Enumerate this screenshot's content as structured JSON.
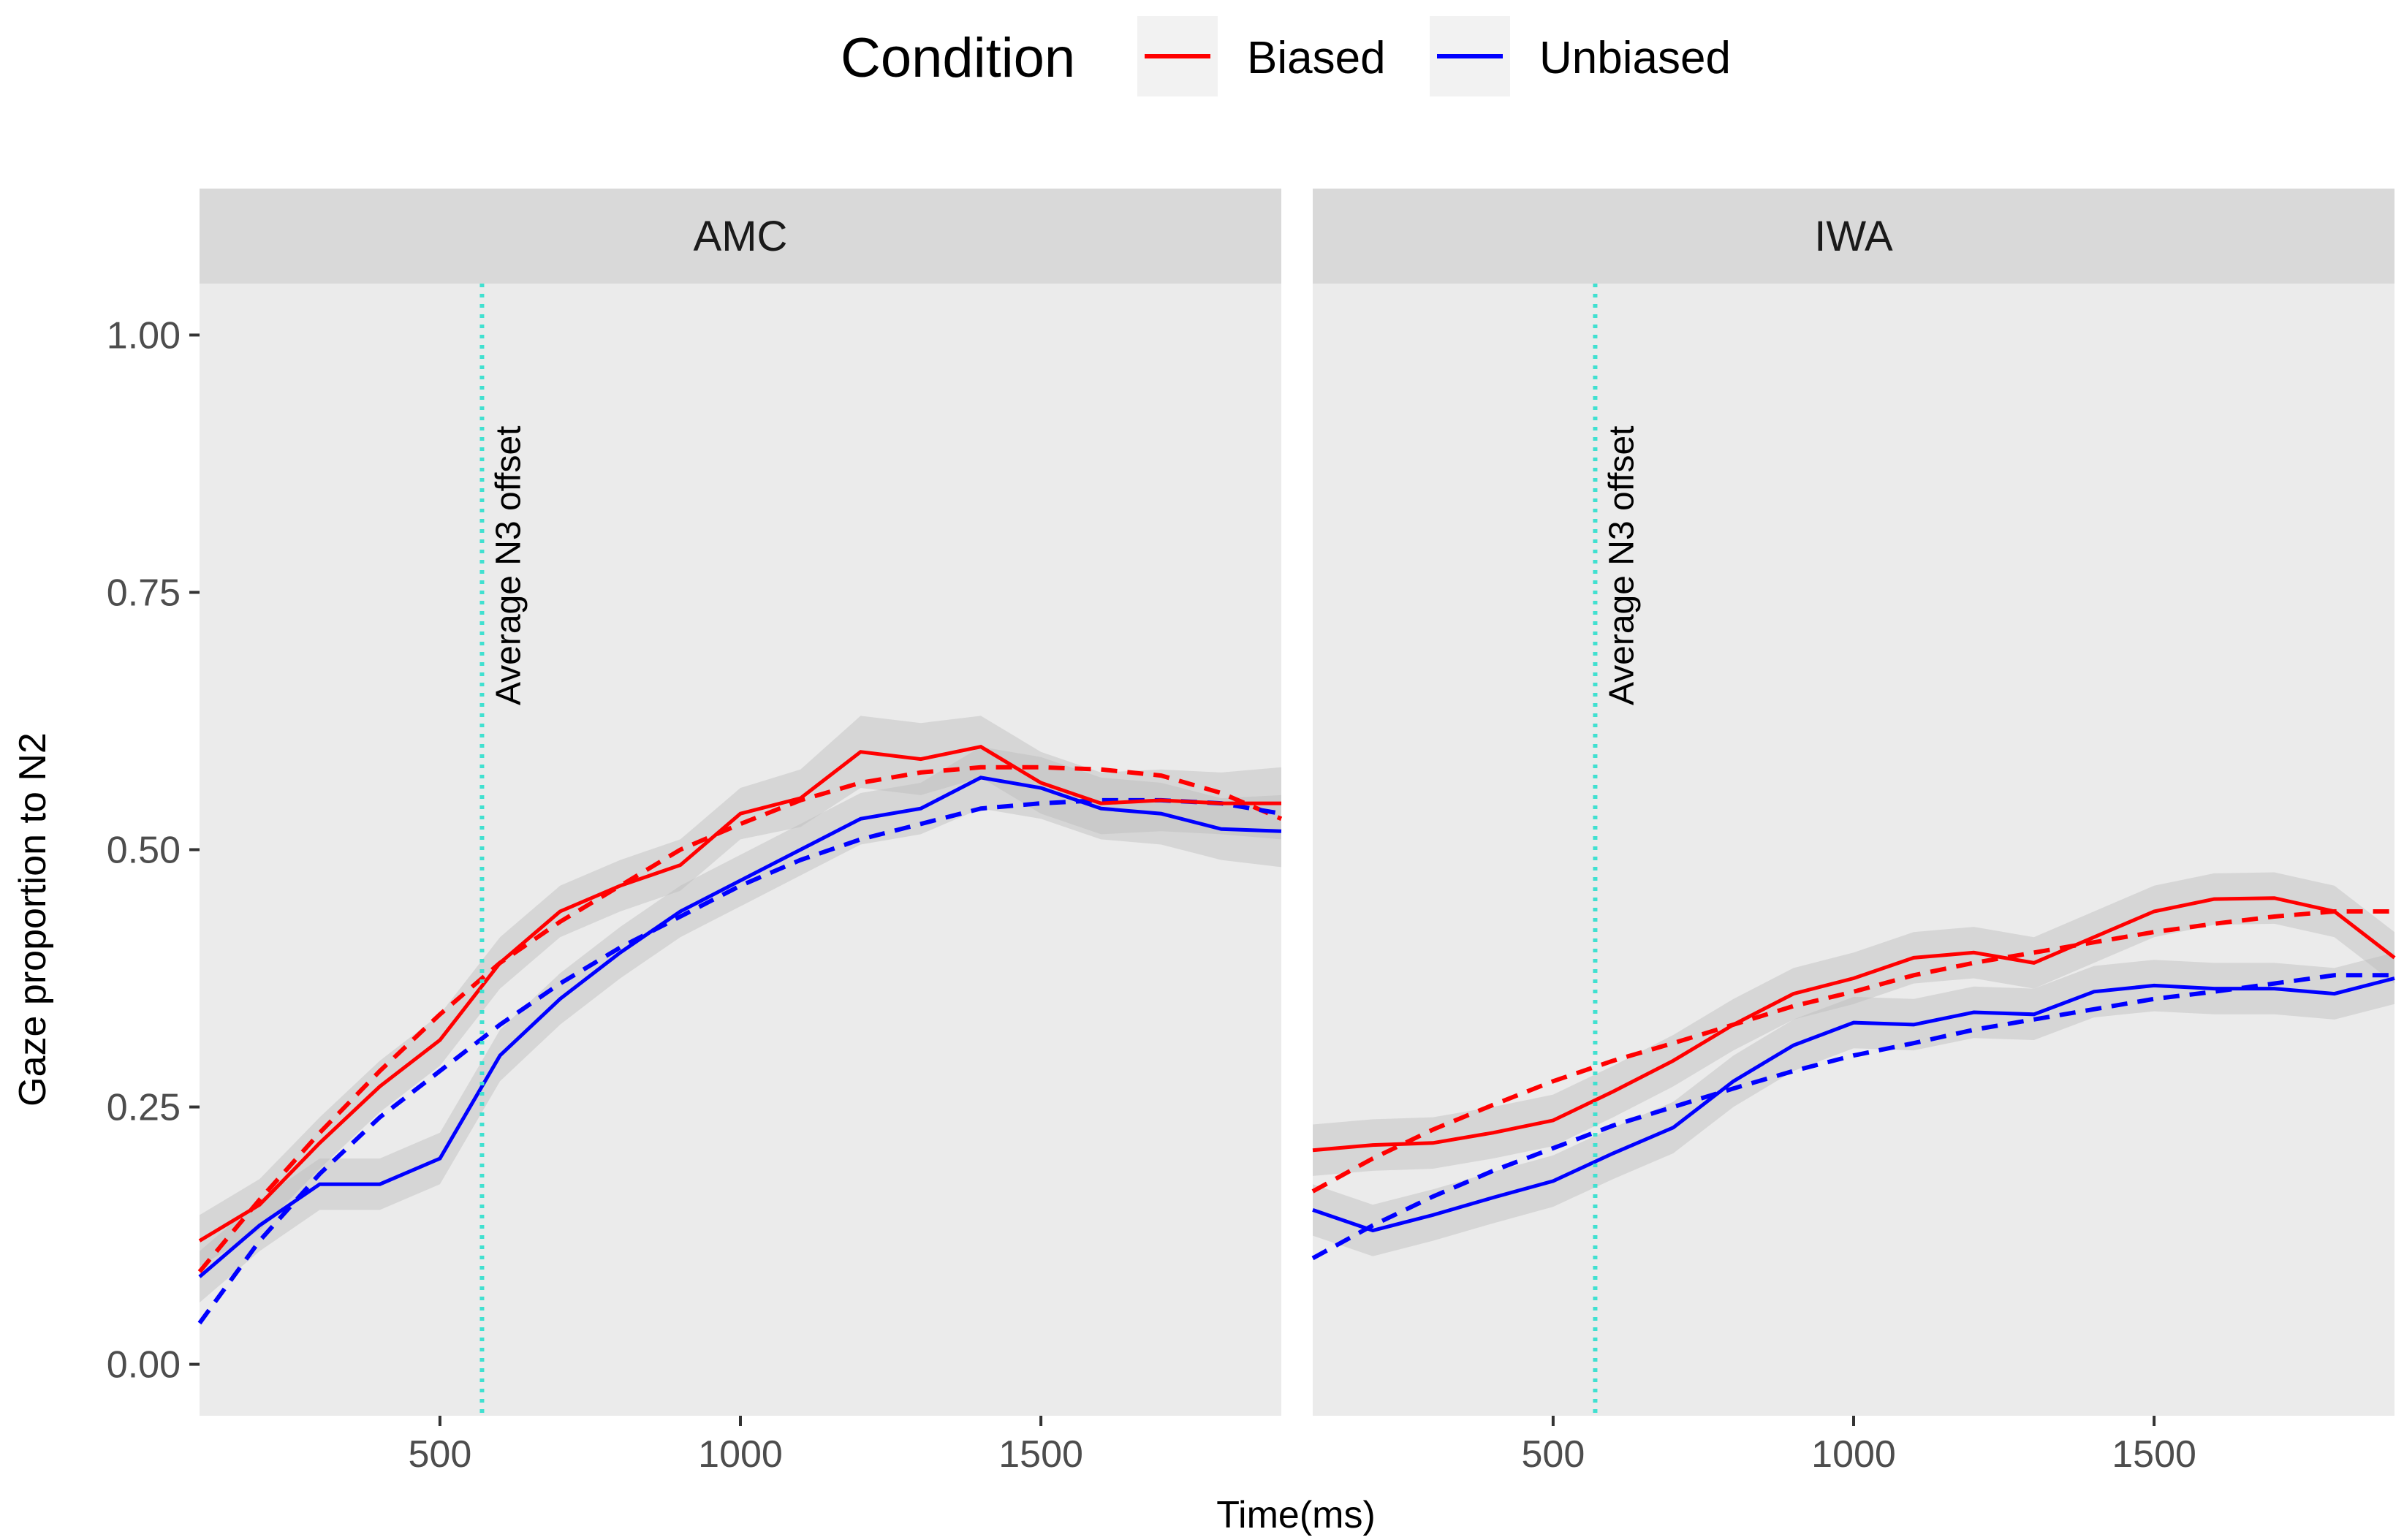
{
  "chart_data": {
    "type": "line",
    "xlabel": "Time(ms)",
    "ylabel": "Gaze proportion to N2",
    "xlim": [
      100,
      1900
    ],
    "ylim": [
      -0.05,
      1.05
    ],
    "x_ticks": [
      500,
      1000,
      1500
    ],
    "y_ticks": [
      0.0,
      0.25,
      0.5,
      0.75,
      1.0
    ],
    "y_tick_labels": [
      "0.00",
      "0.25",
      "0.50",
      "0.75",
      "1.00"
    ],
    "grid": false,
    "legend": {
      "title": "Condition",
      "position": "top",
      "entries": [
        {
          "label": "Biased",
          "color": "#ff0000"
        },
        {
          "label": "Unbiased",
          "color": "#0000ff"
        }
      ]
    },
    "annotation": {
      "label": "Average N3 offset",
      "x": 570,
      "color": "#40e0d0"
    },
    "panels": [
      {
        "title": "AMC",
        "series": [
          {
            "name": "Biased",
            "color": "#ff0000",
            "observed": {
              "x": [
                100,
                200,
                300,
                400,
                500,
                600,
                700,
                800,
                900,
                1000,
                1100,
                1200,
                1300,
                1400,
                1500,
                1600,
                1700,
                1800,
                1900
              ],
              "y": [
                0.12,
                0.155,
                0.215,
                0.27,
                0.315,
                0.39,
                0.44,
                0.465,
                0.485,
                0.535,
                0.55,
                0.595,
                0.588,
                0.6,
                0.565,
                0.545,
                0.548,
                0.545,
                0.545
              ],
              "se": [
                0.025,
                0.025,
                0.025,
                0.025,
                0.025,
                0.025,
                0.025,
                0.025,
                0.025,
                0.025,
                0.028,
                0.035,
                0.035,
                0.03,
                0.03,
                0.03,
                0.03,
                0.03,
                0.035
              ]
            },
            "fitted": {
              "x": [
                100,
                200,
                300,
                400,
                500,
                600,
                700,
                800,
                900,
                1000,
                1100,
                1200,
                1300,
                1400,
                1500,
                1600,
                1700,
                1800,
                1900
              ],
              "y": [
                0.09,
                0.16,
                0.225,
                0.285,
                0.34,
                0.39,
                0.43,
                0.465,
                0.5,
                0.525,
                0.548,
                0.565,
                0.575,
                0.58,
                0.58,
                0.578,
                0.572,
                0.555,
                0.53
              ]
            }
          },
          {
            "name": "Unbiased",
            "color": "#0000ff",
            "observed": {
              "x": [
                100,
                200,
                300,
                400,
                500,
                600,
                700,
                800,
                900,
                1000,
                1100,
                1200,
                1300,
                1400,
                1500,
                1600,
                1700,
                1800,
                1900
              ],
              "y": [
                0.085,
                0.135,
                0.175,
                0.175,
                0.2,
                0.3,
                0.355,
                0.4,
                0.44,
                0.47,
                0.5,
                0.53,
                0.54,
                0.57,
                0.56,
                0.54,
                0.535,
                0.52,
                0.518
              ],
              "se": [
                0.025,
                0.025,
                0.025,
                0.025,
                0.025,
                0.025,
                0.025,
                0.025,
                0.025,
                0.025,
                0.025,
                0.025,
                0.025,
                0.03,
                0.03,
                0.03,
                0.03,
                0.03,
                0.035
              ]
            },
            "fitted": {
              "x": [
                100,
                200,
                300,
                400,
                500,
                600,
                700,
                800,
                900,
                1000,
                1100,
                1200,
                1300,
                1400,
                1500,
                1600,
                1700,
                1800,
                1900
              ],
              "y": [
                0.04,
                0.12,
                0.185,
                0.24,
                0.285,
                0.33,
                0.37,
                0.405,
                0.435,
                0.465,
                0.49,
                0.51,
                0.525,
                0.54,
                0.545,
                0.548,
                0.548,
                0.545,
                0.535
              ]
            }
          }
        ]
      },
      {
        "title": "IWA",
        "series": [
          {
            "name": "Biased",
            "color": "#ff0000",
            "observed": {
              "x": [
                100,
                200,
                300,
                400,
                500,
                600,
                700,
                800,
                900,
                1000,
                1100,
                1200,
                1300,
                1400,
                1500,
                1600,
                1700,
                1800,
                1900
              ],
              "y": [
                0.208,
                0.213,
                0.215,
                0.225,
                0.237,
                0.265,
                0.295,
                0.33,
                0.36,
                0.375,
                0.395,
                0.4,
                0.39,
                0.415,
                0.44,
                0.452,
                0.453,
                0.44,
                0.395
              ],
              "se": [
                0.025,
                0.025,
                0.025,
                0.025,
                0.025,
                0.025,
                0.025,
                0.025,
                0.025,
                0.025,
                0.025,
                0.025,
                0.025,
                0.025,
                0.025,
                0.025,
                0.025,
                0.025,
                0.025
              ]
            },
            "fitted": {
              "x": [
                100,
                200,
                300,
                400,
                500,
                600,
                700,
                800,
                900,
                1000,
                1100,
                1200,
                1300,
                1400,
                1500,
                1600,
                1700,
                1800,
                1900
              ],
              "y": [
                0.168,
                0.2,
                0.228,
                0.252,
                0.275,
                0.295,
                0.312,
                0.33,
                0.348,
                0.362,
                0.378,
                0.39,
                0.4,
                0.41,
                0.42,
                0.428,
                0.435,
                0.44,
                0.44
              ]
            }
          },
          {
            "name": "Unbiased",
            "color": "#0000ff",
            "observed": {
              "x": [
                100,
                200,
                300,
                400,
                500,
                600,
                700,
                800,
                900,
                1000,
                1100,
                1200,
                1300,
                1400,
                1500,
                1600,
                1700,
                1800,
                1900
              ],
              "y": [
                0.15,
                0.13,
                0.145,
                0.162,
                0.178,
                0.205,
                0.23,
                0.275,
                0.31,
                0.332,
                0.33,
                0.342,
                0.34,
                0.362,
                0.368,
                0.365,
                0.365,
                0.36,
                0.375
              ],
              "se": [
                0.025,
                0.025,
                0.025,
                0.025,
                0.025,
                0.025,
                0.025,
                0.025,
                0.025,
                0.025,
                0.025,
                0.025,
                0.025,
                0.025,
                0.025,
                0.025,
                0.025,
                0.025,
                0.025
              ]
            },
            "fitted": {
              "x": [
                100,
                200,
                300,
                400,
                500,
                600,
                700,
                800,
                900,
                1000,
                1100,
                1200,
                1300,
                1400,
                1500,
                1600,
                1700,
                1800,
                1900
              ],
              "y": [
                0.103,
                0.135,
                0.163,
                0.188,
                0.21,
                0.232,
                0.25,
                0.268,
                0.285,
                0.3,
                0.312,
                0.325,
                0.335,
                0.345,
                0.355,
                0.362,
                0.37,
                0.378,
                0.378
              ]
            }
          }
        ]
      }
    ]
  }
}
